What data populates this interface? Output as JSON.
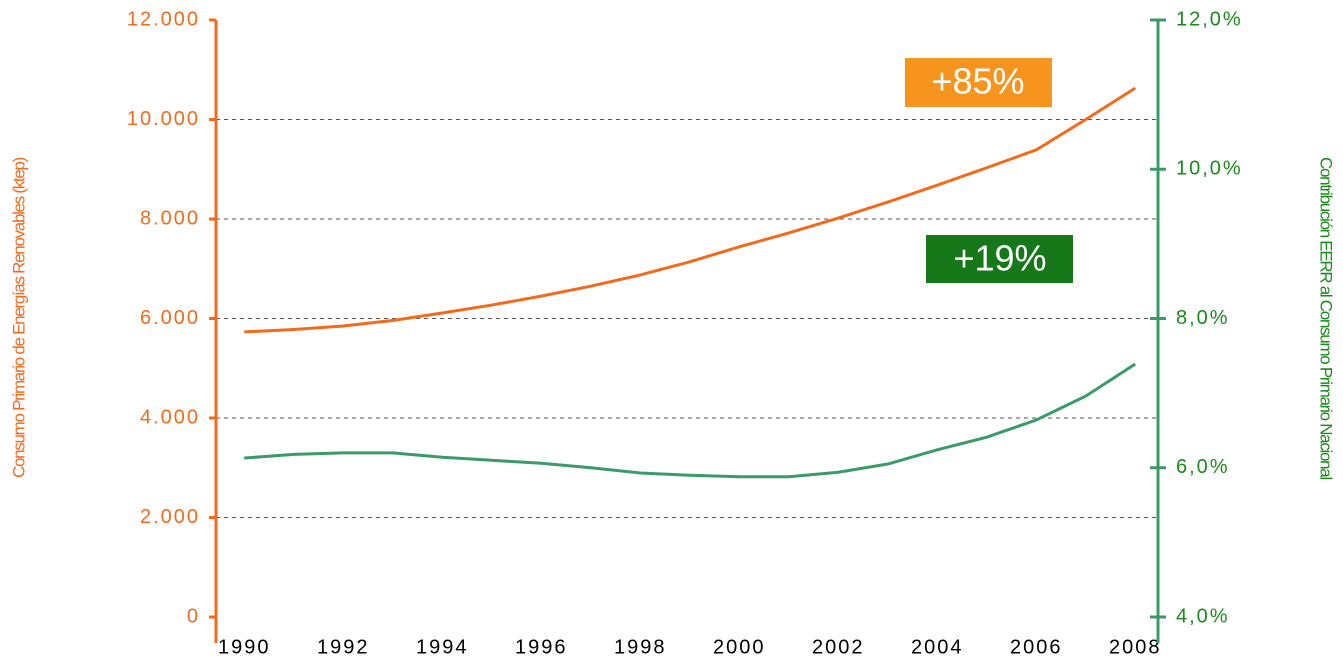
{
  "chart_data": {
    "type": "line",
    "y_label": "Consumo Primario de Energías Renovables (ktep)",
    "y2_label": "Contribución EERR al Consumo Primario Nacional",
    "annotations": [
      "+85%",
      "+19%"
    ],
    "x": [
      1990,
      1991,
      1992,
      1993,
      1994,
      1995,
      1996,
      1997,
      1998,
      1999,
      2000,
      2001,
      2002,
      2003,
      2004,
      2005,
      2006,
      2007,
      2008
    ],
    "series": [
      {
        "name": "Consumo Primario de Energías Renovables",
        "color": "#f26b1d",
        "axis": "y",
        "values": [
          5730,
          5780,
          5850,
          5960,
          6110,
          6270,
          6450,
          6650,
          6875,
          7140,
          7440,
          7720,
          8020,
          8340,
          8680,
          9030,
          9390,
          10000,
          10630
        ]
      },
      {
        "name": "Contribución EERR al Consumo Primario Nacional",
        "color": "#3a9a6a",
        "axis": "y2",
        "values": [
          6.13,
          6.18,
          6.2,
          6.2,
          6.14,
          6.1,
          6.06,
          6.0,
          5.93,
          5.9,
          5.88,
          5.88,
          5.94,
          6.05,
          6.24,
          6.41,
          6.64,
          6.96,
          7.39
        ]
      }
    ],
    "xlim": [
      1989.43,
      2008.46
    ],
    "xticks": [
      1990,
      1992,
      1994,
      1996,
      1998,
      2000,
      2002,
      2004,
      2006,
      2008
    ],
    "ylim": [
      0,
      12000
    ],
    "yticks": [
      0,
      {
        "value": 2000,
        "label": "2.000"
      },
      {
        "value": 4000,
        "label": "4.000"
      },
      {
        "value": 6000,
        "label": "6.000"
      },
      {
        "value": 8000,
        "label": "8.000"
      },
      {
        "value": 10000,
        "label": "10.000"
      },
      {
        "value": 12000,
        "label": "12.000"
      }
    ],
    "y2lim": [
      4,
      12
    ],
    "y2ticks": [
      {
        "value": 4,
        "label": "4,0%"
      },
      {
        "value": 6,
        "label": "6,0%"
      },
      {
        "value": 8,
        "label": "8,0%"
      },
      {
        "value": 10,
        "label": "10,0%"
      },
      {
        "value": 12,
        "label": "12,0%"
      }
    ],
    "grid": true
  }
}
